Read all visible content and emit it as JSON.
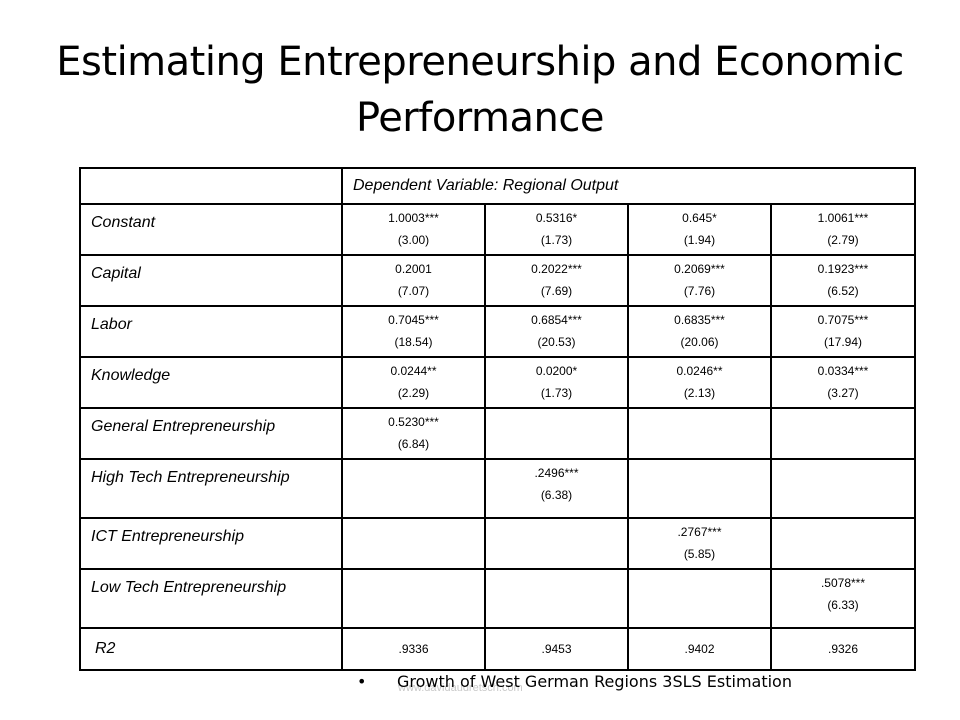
{
  "title": "Estimating Entrepreneurship and Economic Performance",
  "table": {
    "header": "Dependent Variable: Regional Output",
    "rows": [
      {
        "label": "Constant",
        "cells": [
          {
            "coef": "1.0003***",
            "tstat": "(3.00)"
          },
          {
            "coef": "0.5316*",
            "tstat": "(1.73)"
          },
          {
            "coef": "0.645*",
            "tstat": "(1.94)"
          },
          {
            "coef": "1.0061***",
            "tstat": "(2.79)"
          }
        ]
      },
      {
        "label": "Capital",
        "cells": [
          {
            "coef": "0.2001",
            "tstat": "(7.07)"
          },
          {
            "coef": "0.2022***",
            "tstat": "(7.69)"
          },
          {
            "coef": "0.2069***",
            "tstat": "(7.76)"
          },
          {
            "coef": "0.1923***",
            "tstat": "(6.52)"
          }
        ]
      },
      {
        "label": "Labor",
        "cells": [
          {
            "coef": "0.7045***",
            "tstat": "(18.54)"
          },
          {
            "coef": "0.6854***",
            "tstat": "(20.53)"
          },
          {
            "coef": "0.6835***",
            "tstat": "(20.06)"
          },
          {
            "coef": "0.7075***",
            "tstat": "(17.94)"
          }
        ]
      },
      {
        "label": "Knowledge",
        "cells": [
          {
            "coef": "0.0244**",
            "tstat": "(2.29)"
          },
          {
            "coef": "0.0200*",
            "tstat": "(1.73)"
          },
          {
            "coef": "0.0246**",
            "tstat": "(2.13)"
          },
          {
            "coef": "0.0334***",
            "tstat": "(3.27)"
          }
        ]
      },
      {
        "label": "General Entrepreneurship",
        "cells": [
          {
            "coef": "0.5230***",
            "tstat": "(6.84)"
          },
          {
            "coef": "",
            "tstat": ""
          },
          {
            "coef": "",
            "tstat": ""
          },
          {
            "coef": "",
            "tstat": ""
          }
        ]
      },
      {
        "label": "High Tech Entrepreneurship",
        "cells": [
          {
            "coef": "",
            "tstat": ""
          },
          {
            "coef": ".2496***",
            "tstat": "(6.38)"
          },
          {
            "coef": "",
            "tstat": ""
          },
          {
            "coef": "",
            "tstat": ""
          }
        ]
      },
      {
        "label": "ICT Entrepreneurship",
        "cells": [
          {
            "coef": "",
            "tstat": ""
          },
          {
            "coef": "",
            "tstat": ""
          },
          {
            "coef": ".2767***",
            "tstat": "(5.85)"
          },
          {
            "coef": "",
            "tstat": ""
          }
        ]
      },
      {
        "label": "Low Tech Entrepreneurship",
        "cells": [
          {
            "coef": "",
            "tstat": ""
          },
          {
            "coef": "",
            "tstat": ""
          },
          {
            "coef": "",
            "tstat": ""
          },
          {
            "coef": ".5078***",
            "tstat": "(6.33)"
          }
        ]
      },
      {
        "label": "R2",
        "cells": [
          {
            "coef": ".9336",
            "tstat": ""
          },
          {
            "coef": ".9453",
            "tstat": ""
          },
          {
            "coef": ".9402",
            "tstat": ""
          },
          {
            "coef": ".9326",
            "tstat": ""
          }
        ]
      }
    ]
  },
  "footnote": {
    "bullet": "•",
    "text": "Growth of West German Regions  3SLS Estimation"
  },
  "watermark": "www.davidaudretsch.com"
}
